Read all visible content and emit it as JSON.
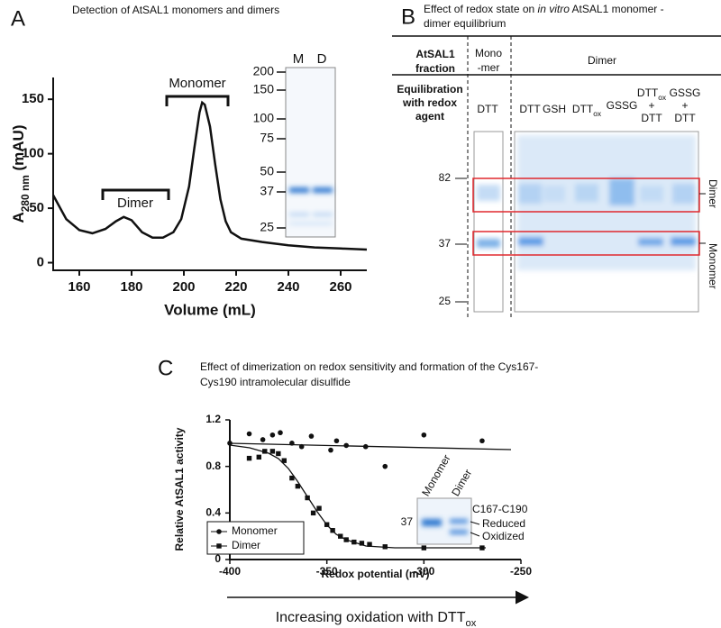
{
  "chart_data": [
    {
      "type": "line",
      "panel_label": "A",
      "title": "Detection of AtSAL1 monomers and dimers",
      "x": [
        150,
        155,
        160,
        165,
        170,
        174,
        177,
        180,
        184,
        188,
        192,
        196,
        199,
        202,
        204,
        206,
        207,
        208,
        210,
        212,
        214,
        216,
        218,
        222,
        230,
        240,
        250,
        260,
        270
      ],
      "values": [
        62,
        40,
        30,
        27,
        31,
        38,
        42,
        39,
        28,
        23,
        23,
        28,
        40,
        70,
        105,
        138,
        147,
        145,
        125,
        90,
        58,
        38,
        28,
        22,
        19,
        16,
        14,
        13,
        12
      ],
      "color": "#111111",
      "xlim": [
        150,
        270
      ],
      "xticks": [
        160,
        180,
        200,
        220,
        240,
        260
      ],
      "ylim": [
        -7,
        170
      ],
      "yticks": [
        0,
        50,
        100,
        150
      ],
      "xlabel": "Volume (mL)",
      "ylabel": {
        "main": "A",
        "sub": "280 nm",
        "rest": " (mAU)"
      },
      "annotations": [
        "Dimer",
        "Monomer"
      ],
      "inset": {
        "lanes": [
          "M",
          "D"
        ],
        "markers": [
          200,
          150,
          100,
          75,
          50,
          37,
          25
        ]
      }
    },
    {
      "type": "scatter",
      "panel_label": "C",
      "title": [
        "Effect of dimerization on redox sensitivity and formation of the Cys167-",
        "Cys190 intramolecular disulfide"
      ],
      "xlim": [
        -400,
        -250
      ],
      "xticks": [
        -400,
        -350,
        -300,
        -250
      ],
      "ylim": [
        0,
        1.2
      ],
      "yticks": [
        0,
        0.4,
        0.8,
        1.2
      ],
      "xlabel": "Redox potential (mV)",
      "ylabel": "Relative AtSAL1 activity",
      "legend": "lower left",
      "series": [
        {
          "name": "Monomer",
          "marker": "circle",
          "color": "#111111",
          "x": [
            -400,
            -390,
            -383,
            -378,
            -374,
            -368,
            -363,
            -358,
            -348,
            -345,
            -340,
            -330,
            -320,
            -300,
            -270
          ],
          "values": [
            1.0,
            1.08,
            1.03,
            1.07,
            1.09,
            1.0,
            0.97,
            1.06,
            0.94,
            1.02,
            0.98,
            0.97,
            0.8,
            1.07,
            1.02
          ]
        },
        {
          "name": "Dimer",
          "marker": "square",
          "color": "#111111",
          "x": [
            -390,
            -385,
            -382,
            -378,
            -375,
            -372,
            -368,
            -365,
            -360,
            -357,
            -354,
            -350,
            -347,
            -343,
            -340,
            -336,
            -332,
            -328,
            -320,
            -300,
            -270
          ],
          "values": [
            0.87,
            0.88,
            0.93,
            0.93,
            0.91,
            0.85,
            0.7,
            0.63,
            0.53,
            0.4,
            0.44,
            0.3,
            0.25,
            0.2,
            0.17,
            0.15,
            0.14,
            0.13,
            0.11,
            0.1,
            0.1
          ]
        }
      ],
      "inset": {
        "lanes": [
          "Monomer",
          "Dimer"
        ],
        "heading": "C167-C190",
        "marker": "37",
        "bands": [
          "Reduced",
          "Oxidized"
        ]
      },
      "arrow": {
        "text": "Increasing oxidation with DTT",
        "sub": "ox"
      }
    }
  ],
  "gel_b": {
    "panel_label": "B",
    "title_before": "Effect of redox state on ",
    "title_italic": "in vitro",
    "title_after": " AtSAL1 monomer -",
    "title_line2": "dimer equilibrium",
    "fraction_header": [
      "AtSAL1",
      "fraction"
    ],
    "monomer_header": [
      "Mono",
      "-mer"
    ],
    "dimer_header": "Dimer",
    "agent_header": [
      "Equilibration",
      "with redox",
      "agent"
    ],
    "lanes": [
      {
        "text": "DTT"
      },
      {
        "text": "DTT"
      },
      {
        "text": "GSH"
      },
      {
        "text": "DTT",
        "sub": "ox"
      },
      {
        "text": "GSSG"
      },
      {
        "text": "DTT",
        "sub": "ox",
        "below": [
          "+",
          "DTT"
        ]
      },
      {
        "text": "GSSG",
        "below": [
          "+",
          "DTT"
        ]
      }
    ],
    "markers": [
      "82",
      "37",
      "25"
    ],
    "band_labels": [
      "Dimer",
      "Monomer"
    ]
  }
}
